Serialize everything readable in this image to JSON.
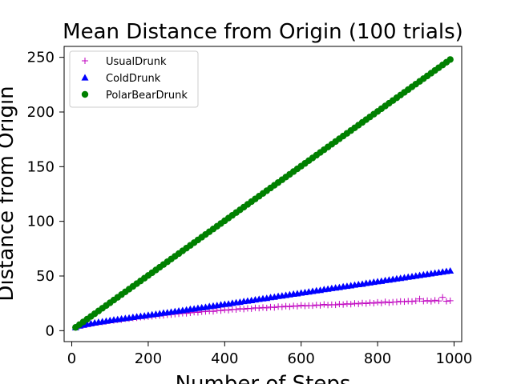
{
  "chart_data": {
    "type": "scatter",
    "title": "Mean Distance from Origin (100 trials)",
    "xlabel": "Number of Steps",
    "ylabel": "Distance from Origin",
    "xlim": [
      -20,
      1020
    ],
    "ylim": [
      -10,
      260
    ],
    "xticks": [
      0,
      200,
      400,
      600,
      800,
      1000
    ],
    "yticks": [
      0,
      50,
      100,
      150,
      200,
      250
    ],
    "grid": false,
    "legend_position": "top-left",
    "x": [
      10,
      20,
      30,
      40,
      50,
      60,
      70,
      80,
      90,
      100,
      110,
      120,
      130,
      140,
      150,
      160,
      170,
      180,
      190,
      200,
      210,
      220,
      230,
      240,
      250,
      260,
      270,
      280,
      290,
      300,
      310,
      320,
      330,
      340,
      350,
      360,
      370,
      380,
      390,
      400,
      410,
      420,
      430,
      440,
      450,
      460,
      470,
      480,
      490,
      500,
      510,
      520,
      530,
      540,
      550,
      560,
      570,
      580,
      590,
      600,
      610,
      620,
      630,
      640,
      650,
      660,
      670,
      680,
      690,
      700,
      710,
      720,
      730,
      740,
      750,
      760,
      770,
      780,
      790,
      800,
      810,
      820,
      830,
      840,
      850,
      860,
      870,
      880,
      890,
      900,
      910,
      920,
      930,
      940,
      950,
      960,
      970,
      980,
      990
    ],
    "series": [
      {
        "name": "UsualDrunk",
        "color": "#bf00bf",
        "marker": "plus",
        "values": [
          2.8,
          4.2,
          4.9,
          5.6,
          6.2,
          7.1,
          7.4,
          7.9,
          8.5,
          9.0,
          9.3,
          9.9,
          10.1,
          10.9,
          11.1,
          11.6,
          11.8,
          12.3,
          12.5,
          12.9,
          13.1,
          13.6,
          13.8,
          14.0,
          14.5,
          14.7,
          15.1,
          15.4,
          15.9,
          15.8,
          16.3,
          16.9,
          16.7,
          17.3,
          17.5,
          17.9,
          17.6,
          18.6,
          18.3,
          19.1,
          18.7,
          19.5,
          19.3,
          20.1,
          19.7,
          20.4,
          20.1,
          20.9,
          20.6,
          21.2,
          20.8,
          21.6,
          21.2,
          22.0,
          21.7,
          22.4,
          21.9,
          22.7,
          22.3,
          23.2,
          22.6,
          23.0,
          22.8,
          23.5,
          23.1,
          24.0,
          23.4,
          23.8,
          23.6,
          24.3,
          23.9,
          24.6,
          24.2,
          25.0,
          24.5,
          25.3,
          24.8,
          25.6,
          25.1,
          26.0,
          25.3,
          26.4,
          25.6,
          26.1,
          26.3,
          26.8,
          26.5,
          27.0,
          26.7,
          27.2,
          29.0,
          27.0,
          27.5,
          26.8,
          27.8,
          27.2,
          30.5,
          26.9,
          27.4
        ]
      },
      {
        "name": "ColdDrunk",
        "color": "#0000ff",
        "marker": "triangle",
        "values": [
          3.0,
          4.5,
          5.3,
          6.0,
          6.6,
          7.3,
          7.9,
          8.4,
          8.9,
          9.5,
          10.0,
          10.4,
          10.9,
          11.4,
          11.8,
          12.4,
          12.9,
          13.3,
          13.7,
          14.3,
          14.8,
          15.2,
          15.7,
          16.3,
          16.6,
          17.2,
          17.7,
          18.2,
          18.6,
          19.2,
          19.8,
          20.1,
          20.7,
          21.2,
          21.6,
          22.3,
          22.7,
          23.2,
          23.8,
          24.3,
          24.6,
          25.3,
          25.8,
          26.2,
          26.9,
          27.3,
          27.8,
          28.4,
          28.9,
          29.4,
          29.8,
          30.5,
          30.9,
          31.6,
          32.0,
          32.5,
          33.1,
          33.6,
          34.0,
          34.6,
          35.1,
          35.6,
          36.2,
          36.7,
          37.1,
          37.8,
          38.2,
          38.8,
          39.3,
          39.7,
          40.4,
          40.8,
          41.3,
          41.9,
          42.4,
          42.8,
          43.5,
          43.9,
          44.5,
          45.0,
          45.4,
          46.1,
          46.5,
          47.1,
          47.6,
          48.1,
          48.6,
          49.2,
          49.6,
          50.2,
          50.7,
          51.3,
          51.7,
          52.3,
          52.8,
          53.3,
          53.8,
          54.4,
          54.8
        ]
      },
      {
        "name": "PolarBearDrunk",
        "color": "#008000",
        "marker": "circle",
        "values": [
          3.0,
          5.5,
          8.0,
          10.5,
          13.0,
          15.5,
          18.0,
          20.5,
          23.0,
          25.5,
          28.0,
          30.5,
          33.0,
          35.5,
          38.0,
          40.5,
          43.0,
          45.5,
          48.0,
          50.5,
          53.0,
          55.5,
          58.0,
          60.5,
          63.0,
          65.5,
          68.0,
          70.5,
          73.0,
          75.5,
          78.0,
          80.5,
          83.0,
          85.5,
          88.0,
          90.5,
          93.0,
          95.5,
          98.0,
          100.5,
          103.0,
          105.5,
          108.0,
          110.5,
          113.0,
          115.5,
          118.0,
          120.5,
          123.0,
          125.5,
          128.0,
          130.5,
          133.0,
          135.5,
          138.0,
          140.5,
          143.0,
          145.5,
          148.0,
          150.5,
          153.0,
          155.5,
          158.0,
          160.5,
          163.0,
          165.5,
          168.0,
          170.5,
          173.0,
          175.5,
          178.0,
          180.5,
          183.0,
          185.5,
          188.0,
          190.5,
          193.0,
          195.5,
          198.0,
          200.5,
          203.0,
          205.5,
          208.0,
          210.5,
          213.0,
          215.5,
          218.0,
          220.5,
          223.0,
          225.5,
          228.0,
          230.5,
          233.0,
          235.5,
          238.0,
          240.5,
          243.0,
          245.5,
          248.0
        ]
      }
    ]
  }
}
